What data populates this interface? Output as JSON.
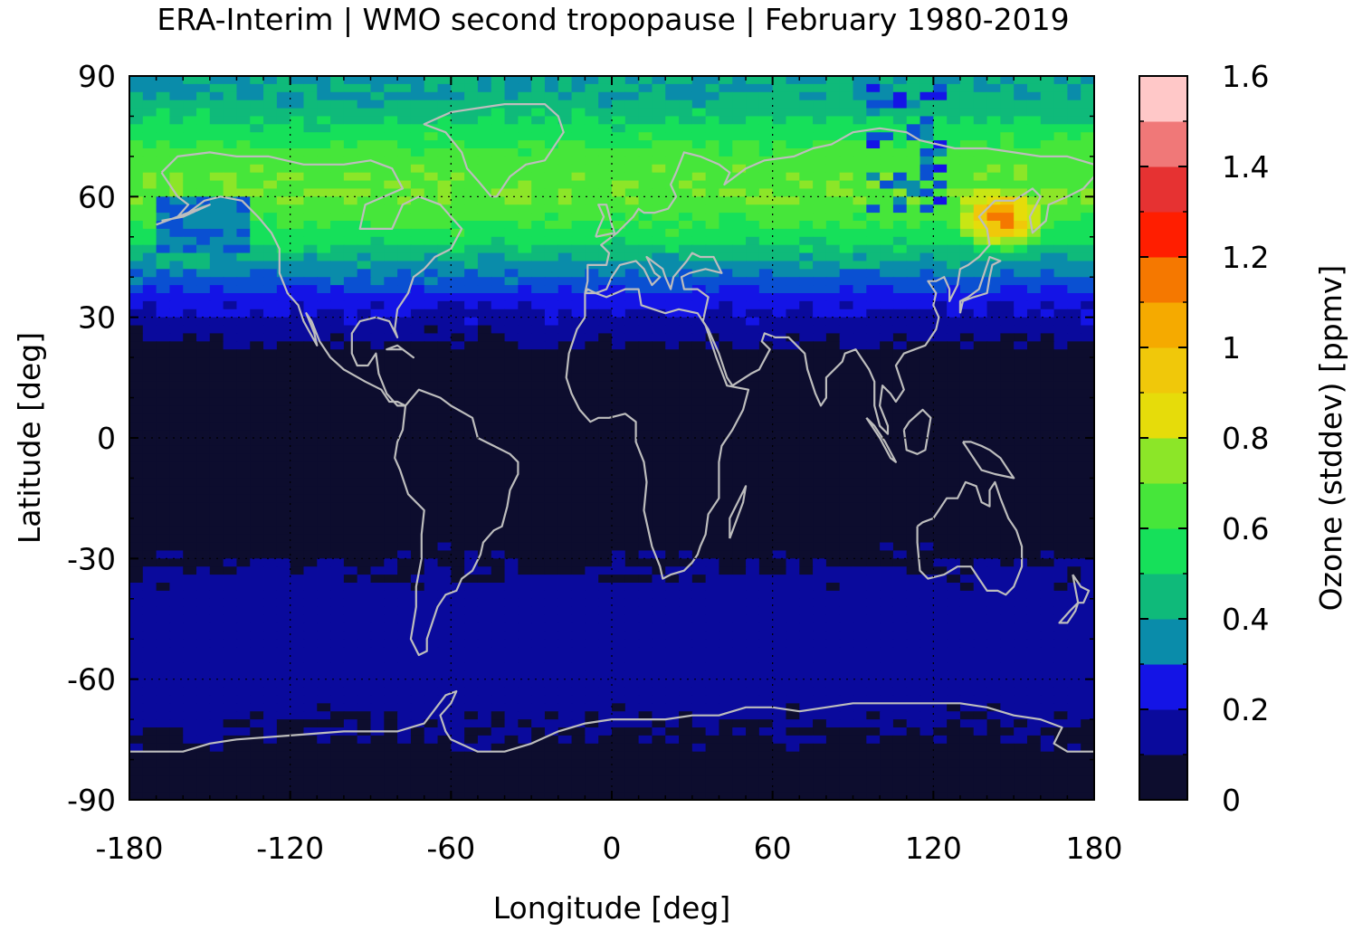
{
  "title": "ERA-Interim | WMO second tropopause | February 1980-2019",
  "map": {
    "xlabel": "Longitude [deg]",
    "ylabel": "Latitude [deg]",
    "xlim": [
      -180,
      180
    ],
    "ylim": [
      -90,
      90
    ],
    "x_ticks": [
      "-180",
      "-120",
      "-60",
      "0",
      "60",
      "120",
      "180"
    ],
    "y_ticks": [
      "90",
      "60",
      "30",
      "0",
      "-30",
      "-60",
      "-90"
    ],
    "grid_lines": "dotted at 60 deg latitude and 60 deg longitude",
    "coastline_color": "#bdbdbd"
  },
  "colorbar": {
    "label": "Ozone (stddev) [ppmv]",
    "tick_labels": [
      "0",
      "0.2",
      "0.4",
      "0.6",
      "0.8",
      "1",
      "1.2",
      "1.4",
      "1.6"
    ],
    "range": [
      0,
      1.6
    ],
    "step": 0.1,
    "colors": [
      "#0d0d2e",
      "#0a0a9c",
      "#1414e6",
      "#0a50d2",
      "#0a8caa",
      "#0fba7a",
      "#16e05a",
      "#46e63a",
      "#8ce628",
      "#c8e614",
      "#e6dc0a",
      "#f0c80a",
      "#f5aa00",
      "#f57800",
      "#ff1e00",
      "#ee1e1e",
      "#e63232",
      "#f07878",
      "#ffc8c8"
    ]
  },
  "chart_data": {
    "type": "heatmap",
    "variable": "Ozone (stddev) [ppmv]",
    "zonal_profile_approx": [
      {
        "lat": 85,
        "value": 0.5
      },
      {
        "lat": 70,
        "value": 0.75
      },
      {
        "lat": 60,
        "value": 0.8
      },
      {
        "lat": 50,
        "value": 0.65
      },
      {
        "lat": 42,
        "value": 0.45
      },
      {
        "lat": 35,
        "value": 0.25
      },
      {
        "lat": 28,
        "value": 0.15
      },
      {
        "lat": 20,
        "value": 0.05
      },
      {
        "lat": 0,
        "value": 0.05
      },
      {
        "lat": -25,
        "value": 0.05
      },
      {
        "lat": -40,
        "value": 0.15
      },
      {
        "lat": -55,
        "value": 0.15
      },
      {
        "lat": -65,
        "value": 0.15
      },
      {
        "lat": -80,
        "value": 0.05
      }
    ],
    "hotspot": {
      "lon": 145,
      "lat": 55,
      "value": 1.3
    }
  }
}
